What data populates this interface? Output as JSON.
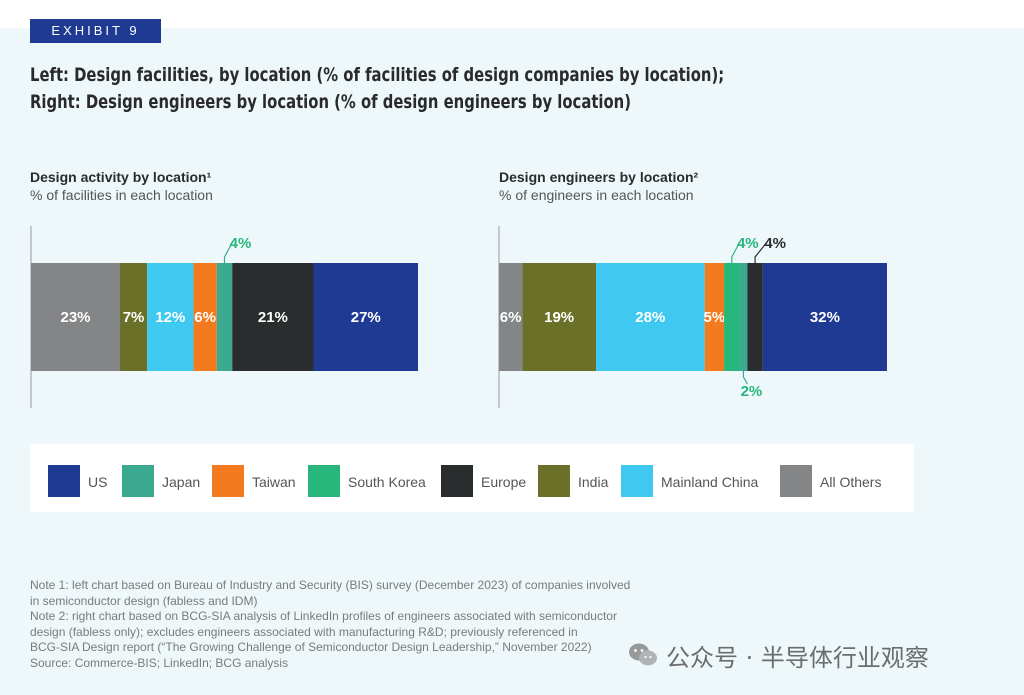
{
  "exhibit_label": "EXHIBIT 9",
  "title_lines": [
    "Left: Design facilities, by location (% of facilities of design companies by location);",
    "Right: Design engineers by location (% of design engineers by location)"
  ],
  "colors": {
    "US": "#1f3a93",
    "Japan": "#3aa98f",
    "Taiwan": "#f47a20",
    "South Korea": "#27b77d",
    "Europe": "#2a2d2e",
    "India": "#6b7028",
    "Mainland China": "#3fc9f0",
    "All Others": "#838587"
  },
  "chart_data": [
    {
      "type": "bar",
      "orientation": "horizontal-stacked",
      "title": "Design activity by location¹",
      "subtitle": "% of facilities in each location",
      "categories": [
        "All Others",
        "India",
        "Mainland China",
        "Taiwan",
        "Japan",
        "Europe",
        "US"
      ],
      "values": [
        23,
        7,
        12,
        6,
        4,
        21,
        27
      ],
      "labels": [
        "23%",
        "7%",
        "12%",
        "6%",
        "4%",
        "21%",
        "27%"
      ],
      "label_position": [
        "inside",
        "inside",
        "inside",
        "inside",
        "above",
        "inside",
        "inside"
      ],
      "unit": "%"
    },
    {
      "type": "bar",
      "orientation": "horizontal-stacked",
      "title": "Design engineers by location²",
      "subtitle": "% of engineers in each location",
      "categories": [
        "All Others",
        "India",
        "Mainland China",
        "Taiwan",
        "South Korea",
        "Japan",
        "Europe",
        "US"
      ],
      "values": [
        6,
        19,
        28,
        5,
        4,
        2,
        4,
        32
      ],
      "labels": [
        "6%",
        "19%",
        "28%",
        "5%",
        "4%",
        "2%",
        "4%",
        "32%"
      ],
      "label_position": [
        "inside",
        "inside",
        "inside",
        "inside",
        "above",
        "below",
        "above",
        "inside"
      ],
      "unit": "%"
    }
  ],
  "legend": [
    "US",
    "Japan",
    "Taiwan",
    "South Korea",
    "Europe",
    "India",
    "Mainland China",
    "All Others"
  ],
  "notes": [
    "Note 1: left chart based on Bureau of Industry and Security (BIS) survey (December 2023) of companies involved",
    "in semiconductor design (fabless and IDM)",
    "Note 2: right chart based on BCG-SIA analysis of LinkedIn profiles of engineers associated with semiconductor",
    "design (fabless only); excludes engineers associated with manufacturing R&D; previously referenced in",
    "BCG-SIA Design report (“The Growing Challenge of Semiconductor Design Leadership,” November 2022)",
    "Source: Commerce-BIS; LinkedIn; BCG analysis"
  ],
  "watermark": {
    "icon": "wechat-icon",
    "text": "公众号 · 半导体行业观察"
  }
}
